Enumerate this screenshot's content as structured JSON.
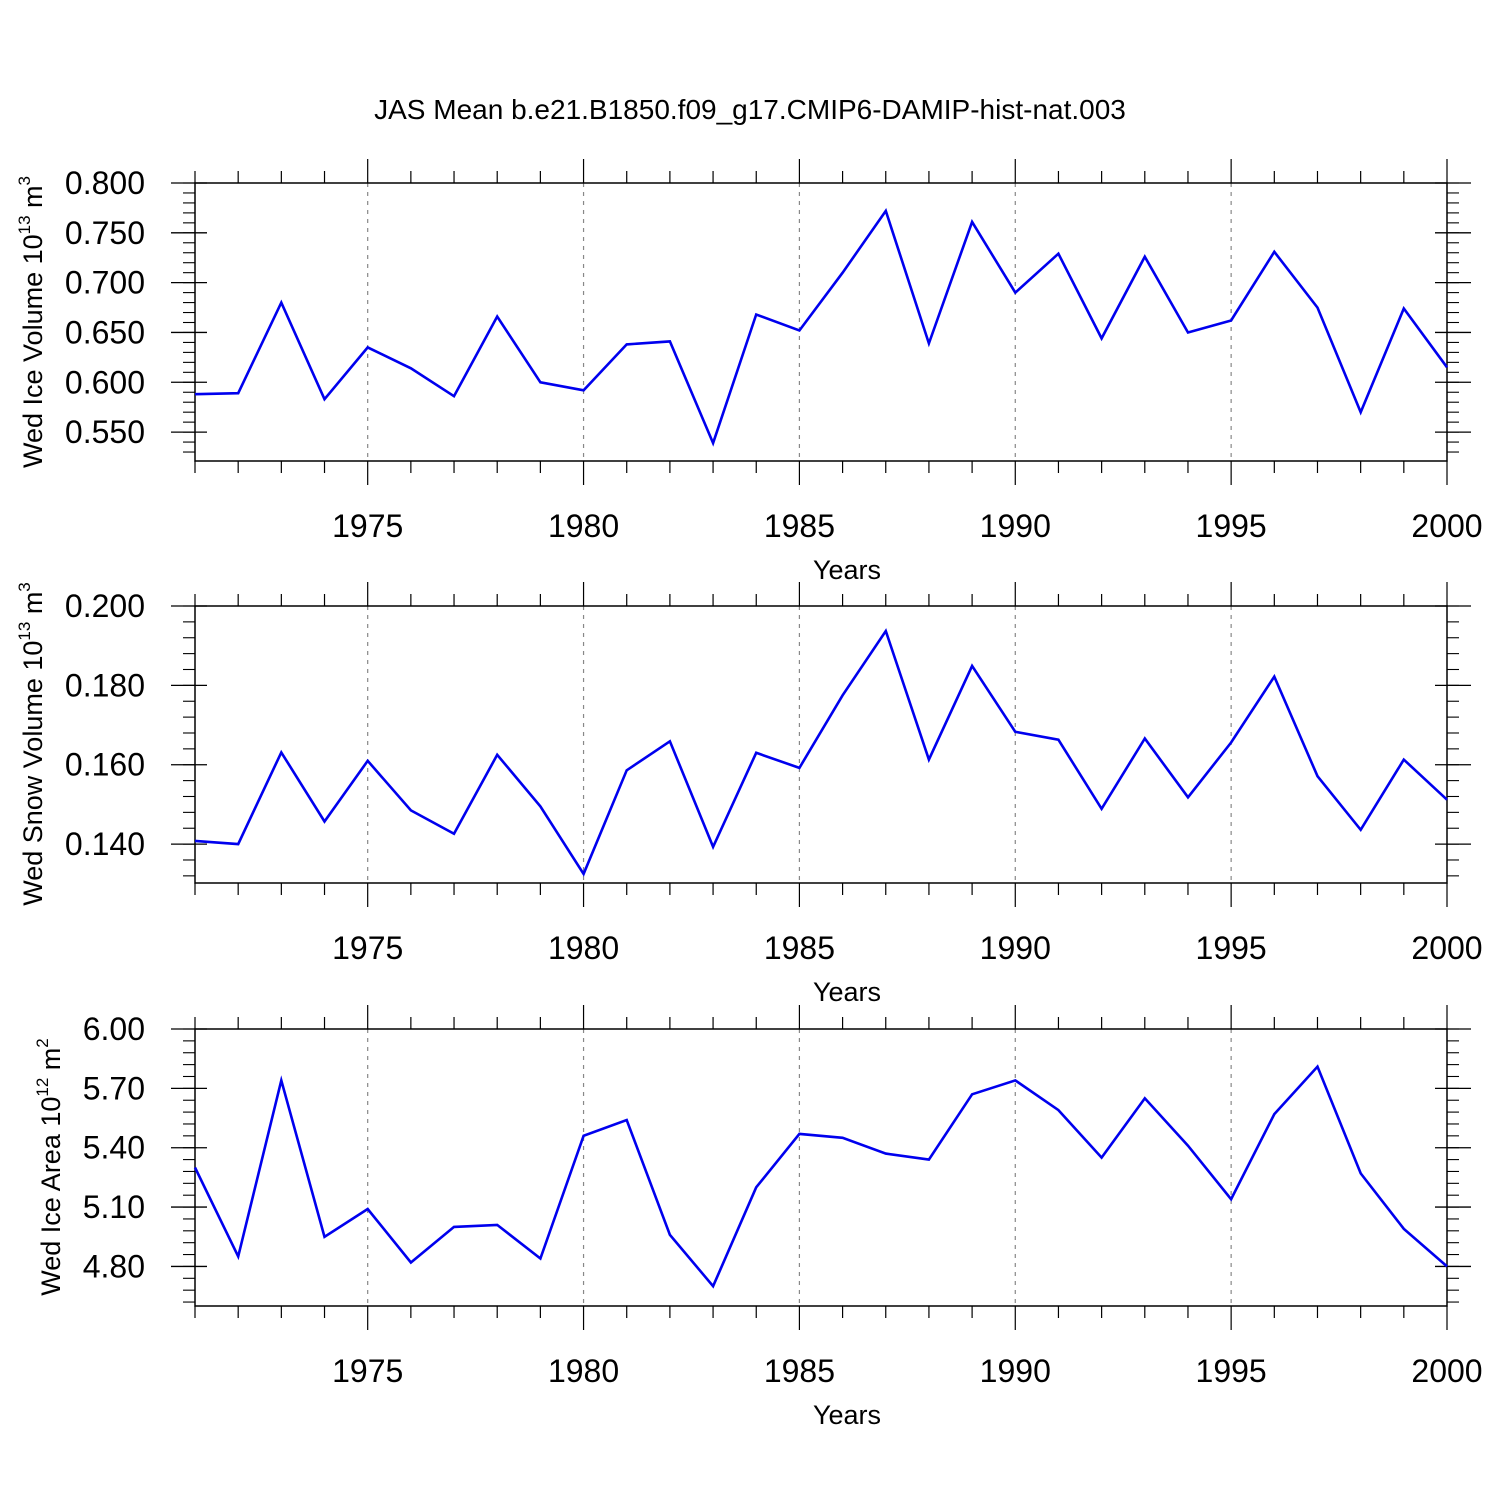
{
  "figure": {
    "title": "JAS Mean b.e21.B1850.f09_g17.CMIP6-DAMIP-hist-nat.003",
    "line_color": "#0000ee",
    "grid_color": "#888888"
  },
  "chart_data": [
    {
      "type": "line",
      "ylabel_main": "Wed Ice Volume 10",
      "ylabel_exp": "13",
      "ylabel_unit": " m",
      "ylabel_unit_exp": "3",
      "xlabel": "Years",
      "xlim": [
        1971,
        2000
      ],
      "ylim": [
        0.521,
        0.8
      ],
      "yticks": [
        0.8,
        0.75,
        0.7,
        0.65,
        0.6,
        0.55
      ],
      "ytick_labels": [
        "0.800",
        "0.750",
        "0.700",
        "0.650",
        "0.600",
        "0.550"
      ],
      "yminor_step": 0.01,
      "xticks": [
        1975,
        1980,
        1985,
        1990,
        1995,
        2000
      ],
      "xtick_labels": [
        "1975",
        "1980",
        "1985",
        "1990",
        "1995",
        "2000"
      ],
      "grid_x": [
        1975,
        1980,
        1985,
        1990,
        1995
      ],
      "x": [
        1971,
        1972,
        1973,
        1974,
        1975,
        1976,
        1977,
        1978,
        1979,
        1980,
        1981,
        1982,
        1983,
        1984,
        1985,
        1986,
        1987,
        1988,
        1989,
        1990,
        1991,
        1992,
        1993,
        1994,
        1995,
        1996,
        1997,
        1998,
        1999,
        2000
      ],
      "values": [
        0.588,
        0.589,
        0.68,
        0.583,
        0.635,
        0.614,
        0.586,
        0.666,
        0.6,
        0.592,
        0.638,
        0.641,
        0.539,
        0.668,
        0.652,
        0.71,
        0.772,
        0.639,
        0.761,
        0.69,
        0.729,
        0.644,
        0.726,
        0.65,
        0.662,
        0.731,
        0.675,
        0.57,
        0.674,
        0.615
      ]
    },
    {
      "type": "line",
      "ylabel_main": "Wed Snow Volume 10",
      "ylabel_exp": "13",
      "ylabel_unit": " m",
      "ylabel_unit_exp": "3",
      "xlabel": "Years",
      "xlim": [
        1971,
        2000
      ],
      "ylim": [
        0.1302,
        0.2
      ],
      "yticks": [
        0.2,
        0.18,
        0.16,
        0.14
      ],
      "ytick_labels": [
        "0.200",
        "0.180",
        "0.160",
        "0.140"
      ],
      "yminor_step": 0.004,
      "xticks": [
        1975,
        1980,
        1985,
        1990,
        1995,
        2000
      ],
      "xtick_labels": [
        "1975",
        "1980",
        "1985",
        "1990",
        "1995",
        "2000"
      ],
      "grid_x": [
        1975,
        1980,
        1985,
        1990,
        1995
      ],
      "x": [
        1971,
        1972,
        1973,
        1974,
        1975,
        1976,
        1977,
        1978,
        1979,
        1980,
        1981,
        1982,
        1983,
        1984,
        1985,
        1986,
        1987,
        1988,
        1989,
        1990,
        1991,
        1992,
        1993,
        1994,
        1995,
        1996,
        1997,
        1998,
        1999,
        2000
      ],
      "values": [
        0.1408,
        0.14,
        0.1631,
        0.1457,
        0.161,
        0.1485,
        0.1426,
        0.1625,
        0.1495,
        0.1325,
        0.1586,
        0.1659,
        0.1393,
        0.163,
        0.1592,
        0.1775,
        0.1937,
        0.1613,
        0.1849,
        0.1683,
        0.1663,
        0.1489,
        0.1666,
        0.1518,
        0.1656,
        0.1822,
        0.1571,
        0.1436,
        0.1613,
        0.1512
      ]
    },
    {
      "type": "line",
      "ylabel_main": "Wed Ice Area 10",
      "ylabel_exp": "12",
      "ylabel_unit": " m",
      "ylabel_unit_exp": "2",
      "xlabel": "Years",
      "xlim": [
        1971,
        2000
      ],
      "ylim": [
        4.6,
        6.0
      ],
      "yticks": [
        6.0,
        5.7,
        5.4,
        5.1,
        4.8
      ],
      "ytick_labels": [
        "6.00",
        "5.70",
        "5.40",
        "5.10",
        "4.80"
      ],
      "yminor_step": 0.06,
      "xticks": [
        1975,
        1980,
        1985,
        1990,
        1995,
        2000
      ],
      "xtick_labels": [
        "1975",
        "1980",
        "1985",
        "1990",
        "1995",
        "2000"
      ],
      "grid_x": [
        1975,
        1980,
        1985,
        1990,
        1995
      ],
      "x": [
        1971,
        1972,
        1973,
        1974,
        1975,
        1976,
        1977,
        1978,
        1979,
        1980,
        1981,
        1982,
        1983,
        1984,
        1985,
        1986,
        1987,
        1988,
        1989,
        1990,
        1991,
        1992,
        1993,
        1994,
        1995,
        1996,
        1997,
        1998,
        1999,
        2000
      ],
      "values": [
        5.3,
        4.85,
        5.74,
        4.95,
        5.09,
        4.82,
        5.0,
        5.01,
        4.84,
        5.46,
        5.54,
        4.96,
        4.7,
        5.2,
        5.47,
        5.45,
        5.37,
        5.34,
        5.67,
        5.74,
        5.59,
        5.35,
        5.65,
        5.41,
        5.14,
        5.57,
        5.81,
        5.27,
        4.99,
        4.8
      ]
    }
  ]
}
